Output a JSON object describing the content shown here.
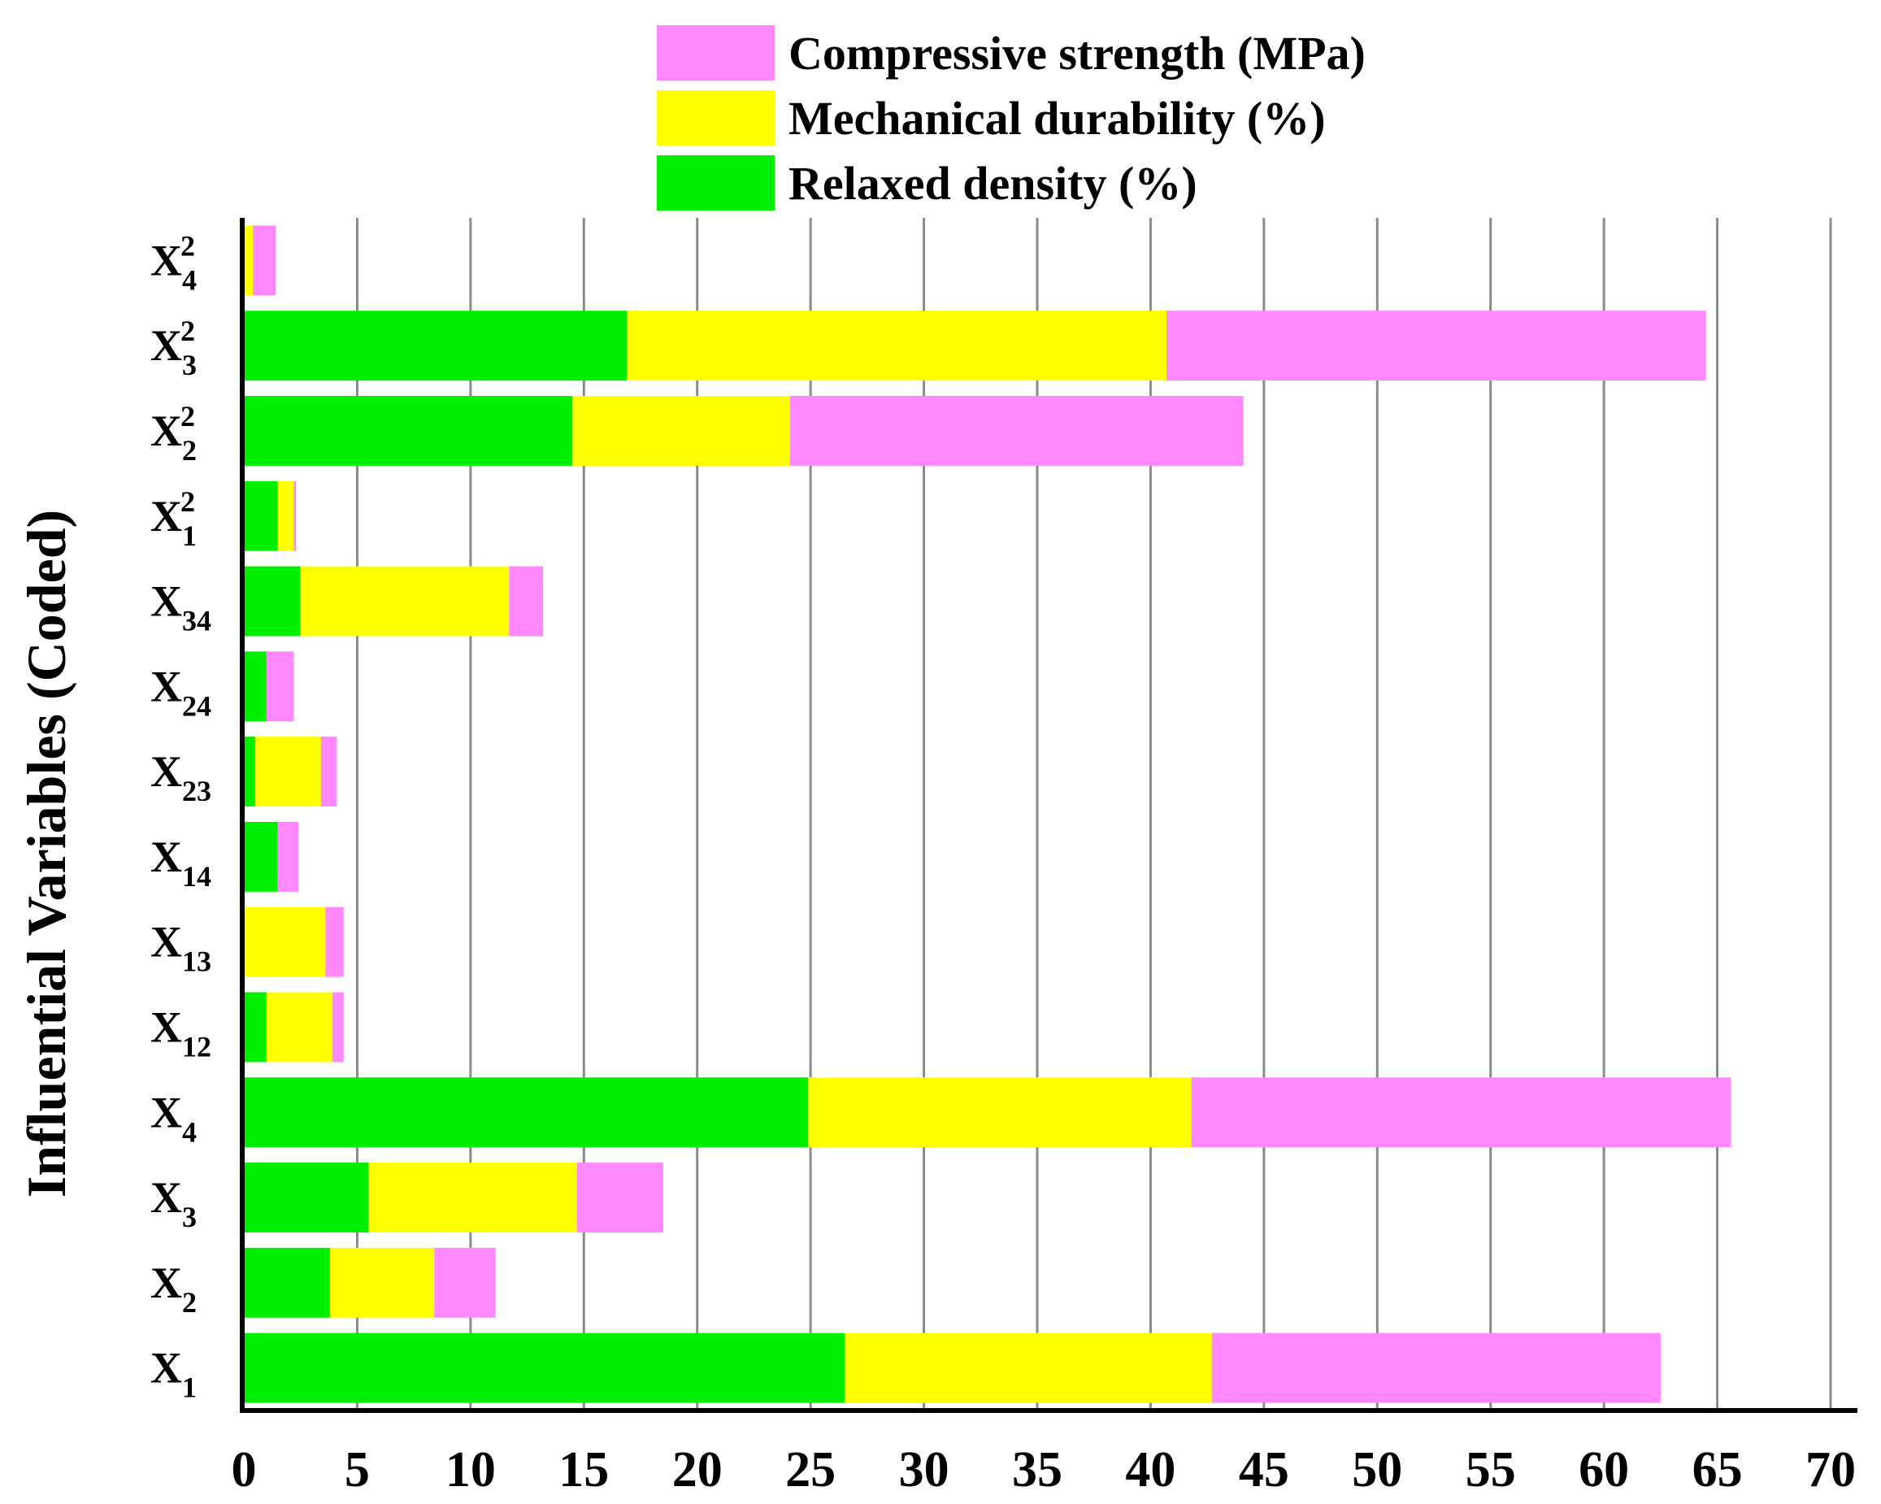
{
  "chart_data": {
    "type": "bar",
    "orientation": "horizontal",
    "stacked": true,
    "title": "",
    "xlabel": "",
    "ylabel": "Influential Variables (Coded)",
    "xlim": [
      0,
      70
    ],
    "xticks": [
      0,
      5,
      10,
      15,
      20,
      25,
      30,
      35,
      40,
      45,
      50,
      55,
      60,
      65,
      70
    ],
    "grid": "vertical",
    "legend_position": "top-right",
    "categories": [
      {
        "base": "X",
        "sub": "1",
        "sup": ""
      },
      {
        "base": "X",
        "sub": "2",
        "sup": ""
      },
      {
        "base": "X",
        "sub": "3",
        "sup": ""
      },
      {
        "base": "X",
        "sub": "4",
        "sup": ""
      },
      {
        "base": "X",
        "sub": "12",
        "sup": ""
      },
      {
        "base": "X",
        "sub": "13",
        "sup": ""
      },
      {
        "base": "X",
        "sub": "14",
        "sup": ""
      },
      {
        "base": "X",
        "sub": "23",
        "sup": ""
      },
      {
        "base": "X",
        "sub": "24",
        "sup": ""
      },
      {
        "base": "X",
        "sub": "34",
        "sup": ""
      },
      {
        "base": "X",
        "sub": "1",
        "sup": "2"
      },
      {
        "base": "X",
        "sub": "2",
        "sup": "2"
      },
      {
        "base": "X",
        "sub": "3",
        "sup": "2"
      },
      {
        "base": "X",
        "sub": "4",
        "sup": "2"
      }
    ],
    "series": [
      {
        "name": "Relaxed density (%)",
        "color": "#00ee00",
        "values": [
          26.5,
          3.8,
          5.5,
          24.9,
          1.0,
          0.0,
          1.5,
          0.5,
          1.0,
          2.5,
          1.5,
          14.5,
          16.9,
          0.0
        ]
      },
      {
        "name": "Mechanical durability (%)",
        "color": "#ffff00",
        "values": [
          16.2,
          4.6,
          9.2,
          16.9,
          2.9,
          3.6,
          0.0,
          2.9,
          0.0,
          9.2,
          0.7,
          9.6,
          23.8,
          0.4
        ]
      },
      {
        "name": "Compressive strength (MPa)",
        "color": "#ff88ff",
        "values": [
          19.8,
          2.7,
          3.8,
          23.8,
          0.5,
          0.8,
          0.9,
          0.7,
          1.2,
          1.5,
          0.1,
          20.0,
          23.8,
          1.0
        ]
      }
    ],
    "legend_order": [
      2,
      1,
      0
    ]
  }
}
